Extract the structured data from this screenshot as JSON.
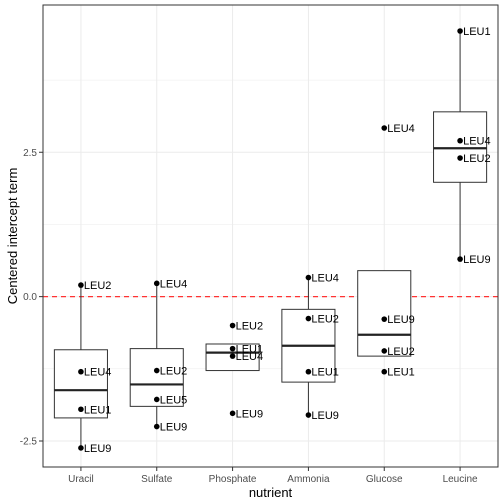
{
  "chart_data": {
    "type": "boxplot",
    "xlabel": "nutrient",
    "ylabel": "Centered intercept term",
    "ylim": [
      -2.95,
      5.05
    ],
    "yticks": [
      -2.5,
      0.0,
      2.5
    ],
    "ytick_labels": [
      "-2.5",
      "0.0",
      "2.5"
    ],
    "grid": true,
    "reference_line": {
      "y": 0.0,
      "style": "dashed",
      "color": "#ff3333"
    },
    "colors": {
      "grid": "#ebebeb",
      "panel_border": "#333333",
      "box": "#333333",
      "point": "#000000"
    },
    "categories": [
      "Uracil",
      "Sulfate",
      "Phosphate",
      "Ammonia",
      "Glucose",
      "Leucine"
    ],
    "boxes": [
      {
        "category": "Uracil",
        "q1": -2.1,
        "median": -1.62,
        "q3": -0.92,
        "whisker_low": -2.62,
        "whisker_high": 0.2
      },
      {
        "category": "Sulfate",
        "q1": -1.9,
        "median": -1.52,
        "q3": -0.9,
        "whisker_low": -2.25,
        "whisker_high": 0.23
      },
      {
        "category": "Phosphate",
        "q1": -1.28,
        "median": -0.97,
        "q3": -0.82,
        "whisker_low": -1.28,
        "whisker_high": -0.82
      },
      {
        "category": "Ammonia",
        "q1": -1.48,
        "median": -0.85,
        "q3": -0.22,
        "whisker_low": -2.05,
        "whisker_high": 0.33
      },
      {
        "category": "Glucose",
        "q1": -1.03,
        "median": -0.66,
        "q3": 0.45,
        "whisker_low": -1.03,
        "whisker_high": 0.45
      },
      {
        "category": "Leucine",
        "q1": 1.98,
        "median": 2.57,
        "q3": 3.2,
        "whisker_low": 0.65,
        "whisker_high": 4.6
      }
    ],
    "points": [
      {
        "category": "Uracil",
        "label": "LEU2",
        "y": 0.2
      },
      {
        "category": "Uracil",
        "label": "LEU4",
        "y": -1.3
      },
      {
        "category": "Uracil",
        "label": "LEU1",
        "y": -1.95
      },
      {
        "category": "Uracil",
        "label": "LEU9",
        "y": -2.62
      },
      {
        "category": "Sulfate",
        "label": "LEU4",
        "y": 0.23
      },
      {
        "category": "Sulfate",
        "label": "LEU2",
        "y": -1.28
      },
      {
        "category": "Sulfate",
        "label": "LEU5",
        "y": -1.78
      },
      {
        "category": "Sulfate",
        "label": "LEU9",
        "y": -2.25
      },
      {
        "category": "Phosphate",
        "label": "LEU2",
        "y": -0.5
      },
      {
        "category": "Phosphate",
        "label": "LEU1",
        "y": -0.9
      },
      {
        "category": "Phosphate",
        "label": "LEU4",
        "y": -1.03
      },
      {
        "category": "Phosphate",
        "label": "LEU9",
        "y": -2.02
      },
      {
        "category": "Ammonia",
        "label": "LEU4",
        "y": 0.33
      },
      {
        "category": "Ammonia",
        "label": "LEU2",
        "y": -0.38
      },
      {
        "category": "Ammonia",
        "label": "LEU1",
        "y": -1.3
      },
      {
        "category": "Ammonia",
        "label": "LEU9",
        "y": -2.05
      },
      {
        "category": "Glucose",
        "label": "LEU4",
        "y": 2.92
      },
      {
        "category": "Glucose",
        "label": "LEU9",
        "y": -0.39
      },
      {
        "category": "Glucose",
        "label": "LEU2",
        "y": -0.94
      },
      {
        "category": "Glucose",
        "label": "LEU1",
        "y": -1.3
      },
      {
        "category": "Leucine",
        "label": "LEU1",
        "y": 4.6
      },
      {
        "category": "Leucine",
        "label": "LEU4",
        "y": 2.7
      },
      {
        "category": "Leucine",
        "label": "LEU2",
        "y": 2.4
      },
      {
        "category": "Leucine",
        "label": "LEU9",
        "y": 0.65
      }
    ]
  }
}
